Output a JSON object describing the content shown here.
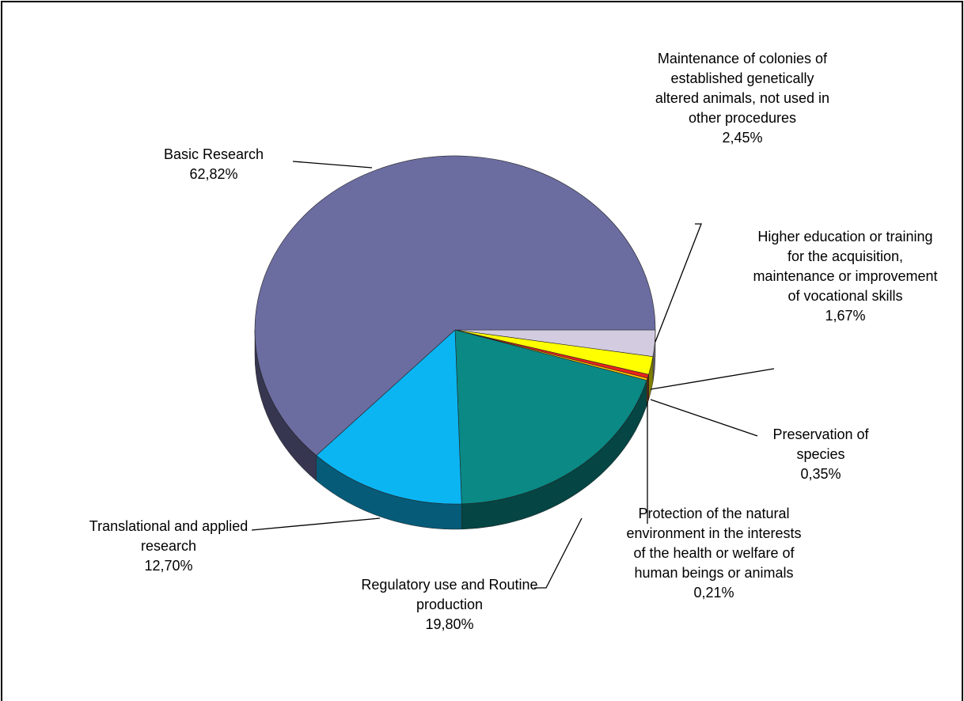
{
  "chart_data": {
    "type": "pie",
    "categories": [
      "Maintenance of colonies of established genetically altered animals, not used in other procedures",
      "Higher education or training for the acquisition, maintenance or improvement of vocational skills",
      "Preservation of species",
      "Protection of the natural environment in the interests of the health or welfare of human beings or animals",
      "Regulatory use and Routine production",
      "Translational and applied research",
      "Basic Research"
    ],
    "values": [
      2.45,
      1.67,
      0.35,
      0.21,
      19.8,
      12.7,
      62.82
    ],
    "value_labels": [
      "2,45%",
      "1,67%",
      "0,35%",
      "0,21%",
      "19,80%",
      "12,70%",
      "62,82%"
    ],
    "colors": [
      "#d3cbe0",
      "#ffff00",
      "#e8231e",
      "#ffc000",
      "#0a8985",
      "#0bb5f2",
      "#6b6ca0"
    ]
  }
}
